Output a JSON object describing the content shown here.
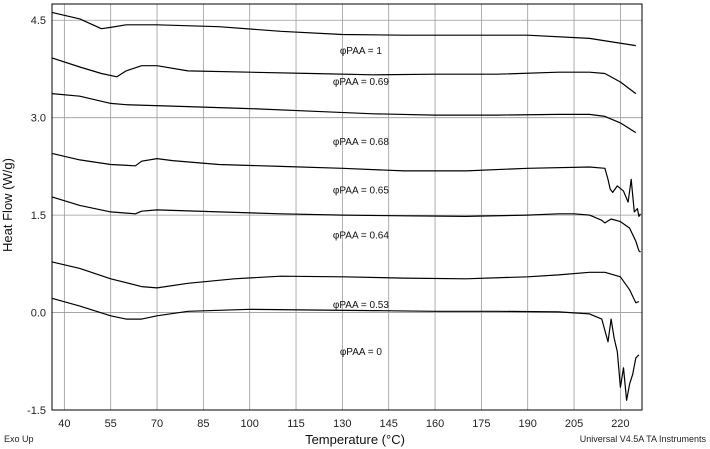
{
  "chart_data": {
    "type": "line",
    "xlabel": "Temperature (°C)",
    "ylabel": "Heat Flow (W/g)",
    "xlim": [
      36,
      227
    ],
    "ylim": [
      -1.5,
      4.75
    ],
    "x_ticks": [
      "40",
      "55",
      "70",
      "85",
      "100",
      "115",
      "130",
      "145",
      "160",
      "175",
      "190",
      "205",
      "220"
    ],
    "y_ticks": [
      "4.5",
      "3.0",
      "1.5",
      "0.0",
      "-1.5"
    ],
    "grid": true,
    "colors": {
      "line": "#000000",
      "grid": "#9a9a9a",
      "frame": "#000000"
    },
    "series": [
      {
        "name": "φPAA = 1",
        "x": [
          36,
          45,
          52,
          55,
          60,
          70,
          90,
          110,
          130,
          150,
          170,
          190,
          210,
          225
        ],
        "y": [
          4.62,
          4.52,
          4.37,
          4.39,
          4.43,
          4.43,
          4.4,
          4.33,
          4.28,
          4.27,
          4.27,
          4.27,
          4.22,
          4.11
        ]
      },
      {
        "name": "φPAA = 0.69",
        "x": [
          36,
          45,
          52,
          57,
          60,
          65,
          70,
          80,
          100,
          120,
          140,
          160,
          180,
          200,
          210,
          215,
          220,
          225
        ],
        "y": [
          3.92,
          3.78,
          3.68,
          3.63,
          3.72,
          3.8,
          3.8,
          3.72,
          3.7,
          3.68,
          3.66,
          3.67,
          3.67,
          3.7,
          3.7,
          3.68,
          3.55,
          3.37
        ]
      },
      {
        "name": "φPAA = 0.68",
        "x": [
          36,
          45,
          55,
          60,
          80,
          100,
          120,
          140,
          160,
          180,
          200,
          210,
          215,
          220,
          225
        ],
        "y": [
          3.37,
          3.33,
          3.22,
          3.2,
          3.17,
          3.14,
          3.1,
          3.06,
          3.04,
          3.04,
          3.05,
          3.05,
          3.02,
          2.92,
          2.77
        ]
      },
      {
        "name": "φPAA = 0.65",
        "x": [
          36,
          45,
          55,
          63,
          65,
          70,
          75,
          90,
          110,
          130,
          150,
          170,
          190,
          210,
          215,
          216,
          216.7,
          217.5,
          219,
          221,
          222.5,
          223.5,
          224.5,
          225.5,
          226,
          226.5
        ],
        "y": [
          2.45,
          2.35,
          2.28,
          2.26,
          2.33,
          2.37,
          2.34,
          2.28,
          2.25,
          2.22,
          2.18,
          2.18,
          2.22,
          2.24,
          2.22,
          2.05,
          1.9,
          1.85,
          1.95,
          1.87,
          1.7,
          2.05,
          1.55,
          1.6,
          1.48,
          1.52
        ]
      },
      {
        "name": "φPAA = 0.64",
        "x": [
          36,
          45,
          55,
          63,
          65,
          70,
          90,
          110,
          130,
          150,
          170,
          190,
          200,
          205,
          210,
          214,
          215,
          217,
          220,
          223,
          225,
          226,
          226.5
        ],
        "y": [
          1.78,
          1.65,
          1.55,
          1.52,
          1.56,
          1.58,
          1.55,
          1.52,
          1.5,
          1.49,
          1.48,
          1.5,
          1.52,
          1.52,
          1.5,
          1.42,
          1.38,
          1.44,
          1.4,
          1.3,
          1.1,
          0.95,
          0.93
        ]
      },
      {
        "name": "φPAA = 0.53",
        "x": [
          36,
          45,
          55,
          65,
          70,
          80,
          95,
          110,
          130,
          150,
          170,
          190,
          200,
          210,
          215,
          220,
          223,
          225,
          226
        ],
        "y": [
          0.78,
          0.68,
          0.52,
          0.4,
          0.38,
          0.45,
          0.52,
          0.56,
          0.55,
          0.53,
          0.52,
          0.55,
          0.58,
          0.62,
          0.62,
          0.55,
          0.35,
          0.15,
          0.17
        ]
      },
      {
        "name": "φPAA = 0",
        "x": [
          36,
          45,
          55,
          60,
          65,
          70,
          80,
          100,
          120,
          140,
          160,
          180,
          200,
          210,
          214,
          216,
          217,
          218,
          219,
          220,
          221,
          222,
          223,
          224,
          225,
          226
        ],
        "y": [
          0.22,
          0.1,
          -0.05,
          -0.1,
          -0.1,
          -0.05,
          0.02,
          0.05,
          0.04,
          0.03,
          0.02,
          0.02,
          0.01,
          -0.02,
          -0.1,
          -0.45,
          -0.1,
          -0.4,
          -0.6,
          -1.15,
          -0.85,
          -1.35,
          -1.1,
          -0.95,
          -0.7,
          -0.65
        ]
      }
    ]
  },
  "footer": {
    "left": "Exo Up",
    "right": "Universal V4.5A TA Instruments"
  }
}
